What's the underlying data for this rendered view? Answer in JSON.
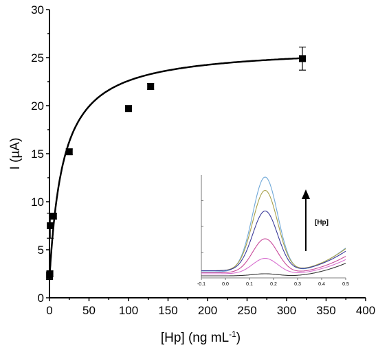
{
  "chart_data": [
    {
      "type": "scatter",
      "xlabel": "[Hp] (ng mL",
      "xlabel_sup": "-1",
      "xlabel_close": ")",
      "ylabel": "I (µA)",
      "xlim": [
        0,
        400
      ],
      "ylim": [
        0,
        30
      ],
      "xticks": [
        "0",
        "50",
        "100",
        "150",
        "200",
        "250",
        "300",
        "350",
        "400"
      ],
      "yticks": [
        "0",
        "5",
        "10",
        "15",
        "20",
        "25",
        "30"
      ],
      "series": [
        {
          "points": [
            {
              "x": 0.1,
              "y": 2.3,
              "err": 0.4
            },
            {
              "x": 0.5,
              "y": 2.5,
              "err": 0.3
            },
            {
              "x": 1,
              "y": 7.5,
              "err": 1.3
            },
            {
              "x": 5,
              "y": 8.5,
              "err": 0.3
            },
            {
              "x": 25,
              "y": 15.2,
              "err": 0.3
            },
            {
              "x": 100,
              "y": 19.7,
              "err": 0.3
            },
            {
              "x": 128,
              "y": 22.0,
              "err": 0.3
            },
            {
              "x": 320,
              "y": 24.9,
              "err": 1.2
            }
          ]
        }
      ],
      "fit": {
        "model": "hyperbolic",
        "vmax": 26.2,
        "k": 17.5,
        "offset": 2.0,
        "x_end": 320
      },
      "grid": false,
      "legend": "none"
    },
    {
      "type": "line",
      "inset": true,
      "xticks": [
        "-0.1",
        "0.0",
        "0.1",
        "0.2",
        "0.3",
        "0.4",
        "0.5"
      ],
      "xlim": [
        -0.1,
        0.5
      ],
      "ylim": [
        0,
        1
      ],
      "annotation": "[Hp]",
      "series": [
        {
          "color": "#6fa8d8",
          "peak": 0.92,
          "base": 0.06
        },
        {
          "color": "#a8a04a",
          "peak": 0.78,
          "base": 0.07
        },
        {
          "color": "#3c3c9a",
          "peak": 0.58,
          "base": 0.07
        },
        {
          "color": "#c84a9a",
          "peak": 0.33,
          "base": 0.05
        },
        {
          "color": "#d870d0",
          "peak": 0.15,
          "base": 0.04
        },
        {
          "color": "#333333",
          "peak": 0.02,
          "base": 0.02
        }
      ]
    }
  ]
}
